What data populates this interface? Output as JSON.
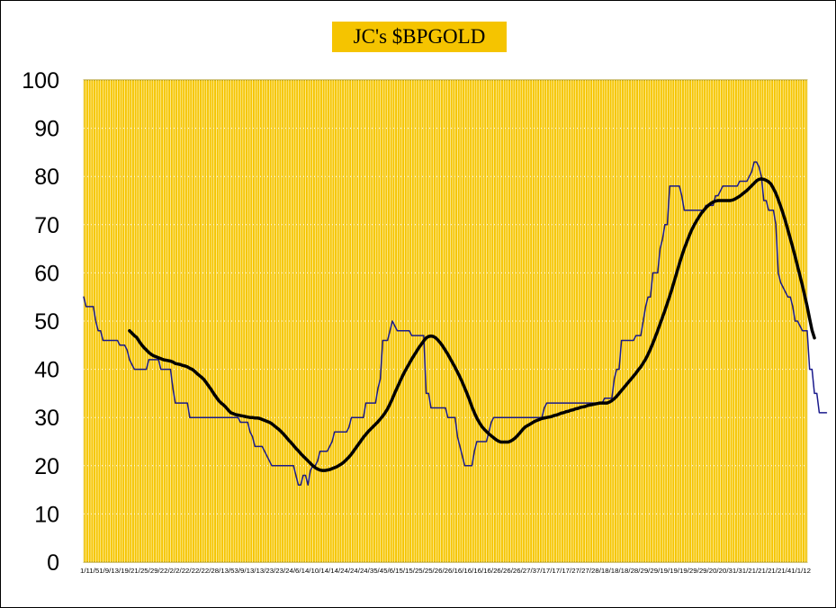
{
  "colors": {
    "plot_background": "#f5c400",
    "vertical_grid": "#fff2b0",
    "horizontal_grid": "#ffffff",
    "plot_border": "#a08a00",
    "series_raw": "#1a1a8c",
    "series_smoothed": "#000000",
    "title_background": "#f5c400"
  },
  "chart_data": {
    "type": "line",
    "title": "JC's $BPGOLD",
    "xlabel": "",
    "ylabel": "",
    "ylim": [
      0,
      100
    ],
    "yticks": [
      "0",
      "10",
      "20",
      "30",
      "40",
      "50",
      "60",
      "70",
      "80",
      "90",
      "100"
    ],
    "grid": true,
    "legend": "none",
    "x_tick_labels": "1/11/51/9/13/19/21/25/29/22/2/2/22/22/22/28/13/53/9/13/13/23/23/24/6/14/10/14/14/24/24/24/35/45/6/15/15/25/25/26/26/16/16/16/16/26/26/26/27/37/17/17/17/27/27/28/18/18/18/28/29/29/19/19/19/29/29/20/20/31/31/21/21/21/21/41/1/12",
    "x_range": [
      0,
      300
    ],
    "series": [
      {
        "values": [
          55,
          53,
          53,
          53,
          53,
          50,
          48,
          48,
          46,
          46,
          46,
          46,
          46,
          46,
          46,
          45,
          45,
          45,
          44,
          42,
          41,
          40,
          40,
          40,
          40,
          40,
          40,
          42,
          42,
          42,
          42,
          42,
          40,
          40,
          40,
          40,
          40,
          36,
          33,
          33,
          33,
          33,
          33,
          33,
          30,
          30,
          30,
          30,
          30,
          30,
          30,
          30,
          30,
          30,
          30,
          30,
          30,
          30,
          30,
          30,
          30,
          30,
          30,
          30,
          30,
          29,
          29,
          29,
          29,
          27,
          26,
          24,
          24,
          24,
          24,
          23,
          22,
          21,
          20,
          20,
          20,
          20,
          20,
          20,
          20,
          20,
          20,
          20,
          18,
          16,
          16,
          18,
          18,
          16,
          19,
          20,
          20,
          21,
          23,
          23,
          23,
          23,
          24,
          25,
          27,
          27,
          27,
          27,
          27,
          27,
          28,
          30,
          30,
          30,
          30,
          30,
          30,
          33,
          33,
          33,
          33,
          33,
          36,
          38,
          46,
          46,
          46,
          48,
          50,
          49,
          48,
          48,
          48,
          48,
          48,
          48,
          47,
          47,
          47,
          47,
          47,
          47,
          35,
          35,
          32,
          32,
          32,
          32,
          32,
          32,
          32,
          30,
          30,
          30,
          30,
          26,
          24,
          22,
          20,
          20,
          20,
          20,
          23,
          25,
          25,
          25,
          25,
          25,
          27,
          29,
          30,
          30,
          30,
          30,
          30,
          30,
          30,
          30,
          30,
          30,
          30,
          30,
          30,
          30,
          30,
          30,
          30,
          30,
          30,
          30,
          30,
          32,
          33,
          33,
          33,
          33,
          33,
          33,
          33,
          33,
          33,
          33,
          33,
          33,
          33,
          33,
          33,
          33,
          33,
          33,
          33,
          33,
          33,
          33,
          33,
          33,
          34,
          34,
          34,
          34,
          38,
          40,
          40,
          46,
          46,
          46,
          46,
          46,
          46,
          47,
          47,
          47,
          50,
          53,
          55,
          55,
          60,
          60,
          60,
          65,
          67,
          70,
          70,
          78,
          78,
          78,
          78,
          78,
          76,
          73,
          73,
          73,
          73,
          73,
          73,
          73,
          73,
          73,
          74,
          74,
          74,
          74,
          76,
          76,
          77,
          78,
          78,
          78,
          78,
          78,
          78,
          78,
          79,
          79,
          79,
          79,
          80,
          81,
          83,
          83,
          82,
          80,
          75,
          75,
          73,
          73,
          73,
          70,
          60,
          58,
          57,
          56,
          55,
          55,
          53,
          50,
          50,
          49,
          48,
          48,
          48,
          40,
          40,
          35,
          35,
          31,
          31,
          31,
          31
        ]
      },
      {
        "x_start": 19,
        "values": [
          48,
          47.5,
          47,
          46.6,
          45.8,
          45.1,
          44.5,
          44,
          43.5,
          43.1,
          42.8,
          42.6,
          42.4,
          42.2,
          42,
          41.9,
          41.8,
          41.7,
          41.5,
          41.2,
          41.1,
          41,
          40.8,
          40.7,
          40.5,
          40.2,
          40,
          39.6,
          39.1,
          38.7,
          38.3,
          37.8,
          37.1,
          36.4,
          35.7,
          34.9,
          34.2,
          33.5,
          33,
          32.6,
          32.1,
          31.5,
          31,
          30.8,
          30.6,
          30.5,
          30.4,
          30.3,
          30.2,
          30.1,
          30,
          30,
          29.9,
          29.9,
          29.8,
          29.6,
          29.4,
          29.2,
          29,
          28.7,
          28.3,
          27.9,
          27.5,
          27,
          26.5,
          25.9,
          25.3,
          24.8,
          24.2,
          23.6,
          23.1,
          22.5,
          22,
          21.5,
          21,
          20.5,
          20,
          19.6,
          19.3,
          19.1,
          19,
          19,
          19.1,
          19.2,
          19.4,
          19.6,
          19.8,
          20.1,
          20.4,
          20.8,
          21.3,
          21.8,
          22.4,
          23.1,
          23.8,
          24.5,
          25.2,
          25.9,
          26.5,
          27.1,
          27.6,
          28.1,
          28.6,
          29.1,
          29.7,
          30.3,
          31,
          31.8,
          32.8,
          33.9,
          35.1,
          36.2,
          37.3,
          38.4,
          39.4,
          40.3,
          41.2,
          42.1,
          42.9,
          43.7,
          44.5,
          45.2,
          45.9,
          46.5,
          46.8,
          46.9,
          46.8,
          46.5,
          46,
          45.4,
          44.7,
          43.9,
          43.1,
          42.2,
          41.3,
          40.4,
          39.4,
          38.4,
          37.3,
          36.1,
          34.9,
          33.6,
          32.2,
          31,
          29.9,
          29,
          28.2,
          27.6,
          27.1,
          26.6,
          26.2,
          25.8,
          25.4,
          25.1,
          24.9,
          24.9,
          24.9,
          24.9,
          25.1,
          25.4,
          25.8,
          26.3,
          26.9,
          27.5,
          28,
          28.3,
          28.6,
          28.9,
          29.2,
          29.4,
          29.6,
          29.8,
          29.9,
          30,
          30.1,
          30.2,
          30.4,
          30.5,
          30.7,
          30.9,
          31,
          31.2,
          31.3,
          31.5,
          31.6,
          31.8,
          31.9,
          32.1,
          32.2,
          32.3,
          32.5,
          32.6,
          32.7,
          32.8,
          32.9,
          33,
          33,
          33,
          33,
          33.2,
          33.5,
          33.9,
          34.4,
          35,
          35.6,
          36.2,
          36.8,
          37.4,
          38,
          38.6,
          39.2,
          39.9,
          40.5,
          41.3,
          42.1,
          43.1,
          44.2,
          45.4,
          46.7,
          48,
          49.4,
          50.8,
          52.2,
          53.7,
          55.2,
          56.8,
          58.5,
          60.2,
          61.9,
          63.5,
          65,
          66.3,
          67.6,
          68.8,
          69.8,
          70.7,
          71.5,
          72.3,
          72.9,
          73.5,
          74,
          74.4,
          74.7,
          74.9,
          75,
          75,
          75,
          75,
          75,
          75,
          75.1,
          75.3,
          75.6,
          75.9,
          76.3,
          76.7,
          77.1,
          77.6,
          78.1,
          78.6,
          79.1,
          79.4,
          79.5,
          79.4,
          79.2,
          78.9,
          78.4,
          77.5,
          76.5,
          75.2,
          73.8,
          72.3,
          70.7,
          68.9,
          67.1,
          65.3,
          63.4,
          61.4,
          59.4,
          57.4,
          55.2,
          53,
          50.5,
          48.1,
          46.5
        ]
      }
    ]
  }
}
